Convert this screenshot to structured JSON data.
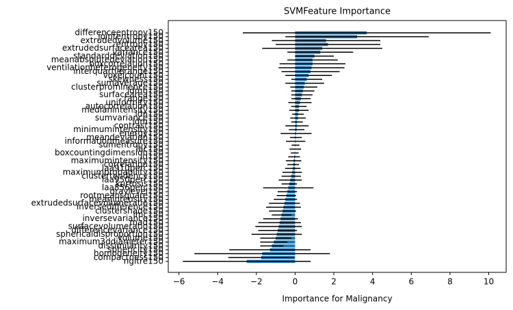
{
  "chart_data": {
    "type": "barh",
    "title": "SVMFeature Importance",
    "x_label": "Importance for Malignancy",
    "categories": [
      "differenceentropy150",
      "jointentropy150",
      "extrudedvolume150",
      "entropy150",
      "extrudedsurfacearea150",
      "variance150",
      "standarddeviation150",
      "meanabsolutedeviation150",
      "boxcorrelation150",
      "ventilationheterogeneity150",
      "interquartilerange150",
      "voxelcount150",
      "skewness150",
      "sumaverage150",
      "clusterprominence150",
      "idmn150",
      "surfacearea150",
      "range150",
      "uniformity150",
      "autocorrelation150",
      "medianintensity150",
      "idn150",
      "sumvariance150",
      "idm150",
      "contrast150",
      "minimumintensity150",
      "energy150",
      "meandeviation150",
      "informationmeasure150",
      "sumentropy150",
      "lac150",
      "boxcountingdimension150",
      "id150",
      "maximumintensity150",
      "correlation150",
      "laa910perc150",
      "maximumprobability150",
      "clustertendency150",
      "laa950perc150",
      "kurtosis150",
      "laa856perc150",
      "graylevel150",
      "rootmeansquare150",
      "meanintensity150",
      "extrudedsurfacevolumeratio150",
      "inversedifference150",
      "clustershade150",
      "imc150",
      "inversevariance150",
      "mad150",
      "surfacevolumeratio150",
      "differencevariance150",
      "sphericaldisproportion150",
      "volume150",
      "maximum3ddiameter150",
      "dissimilarity150",
      "sphericity150",
      "homogeneity150",
      "compactness150",
      "ngltre150"
    ],
    "values": [
      3.7,
      3.2,
      1.6,
      1.7,
      1.4,
      1.3,
      1.0,
      0.9,
      0.9,
      0.85,
      0.8,
      0.7,
      0.6,
      0.5,
      0.45,
      0.4,
      0.35,
      0.3,
      0.25,
      0.2,
      0.2,
      0.15,
      0.15,
      0.1,
      0.1,
      0.08,
      0.05,
      0.04,
      0.03,
      0.02,
      0.01,
      -0.02,
      -0.05,
      -0.08,
      -0.1,
      -0.12,
      -0.15,
      -0.2,
      -0.25,
      -0.3,
      -0.35,
      -0.4,
      -0.45,
      -0.5,
      -0.55,
      -0.6,
      -0.65,
      -0.7,
      -0.75,
      -0.8,
      -0.85,
      -0.9,
      -0.95,
      -1.0,
      -1.1,
      -1.2,
      -1.3,
      -1.7,
      -1.75,
      -2.5
    ],
    "errors": [
      6.4,
      3.7,
      2.8,
      2.7,
      3.1,
      1.7,
      1.0,
      1.3,
      1.7,
      1.7,
      1.5,
      1.2,
      0.8,
      1.0,
      0.7,
      0.6,
      0.55,
      0.5,
      0.6,
      0.4,
      0.5,
      0.3,
      0.4,
      0.3,
      0.6,
      0.4,
      0.8,
      0.3,
      0.5,
      0.2,
      0.3,
      0.2,
      0.3,
      0.4,
      0.3,
      0.4,
      0.5,
      0.5,
      0.6,
      0.4,
      1.3,
      0.5,
      0.5,
      0.6,
      0.8,
      0.9,
      0.7,
      0.5,
      0.9,
      1.1,
      1.2,
      1.0,
      1.3,
      0.8,
      0.7,
      0.6,
      2.1,
      3.5,
      1.7,
      3.3
    ],
    "color": "#1f77b4",
    "error_color": "#000000",
    "xlim": [
      -6.55,
      10.9
    ],
    "xticks": [
      {
        "value": -6,
        "label": "−6"
      },
      {
        "value": -4,
        "label": "−4"
      },
      {
        "value": -2,
        "label": "−2"
      },
      0,
      2,
      4,
      6,
      8,
      10
    ]
  }
}
